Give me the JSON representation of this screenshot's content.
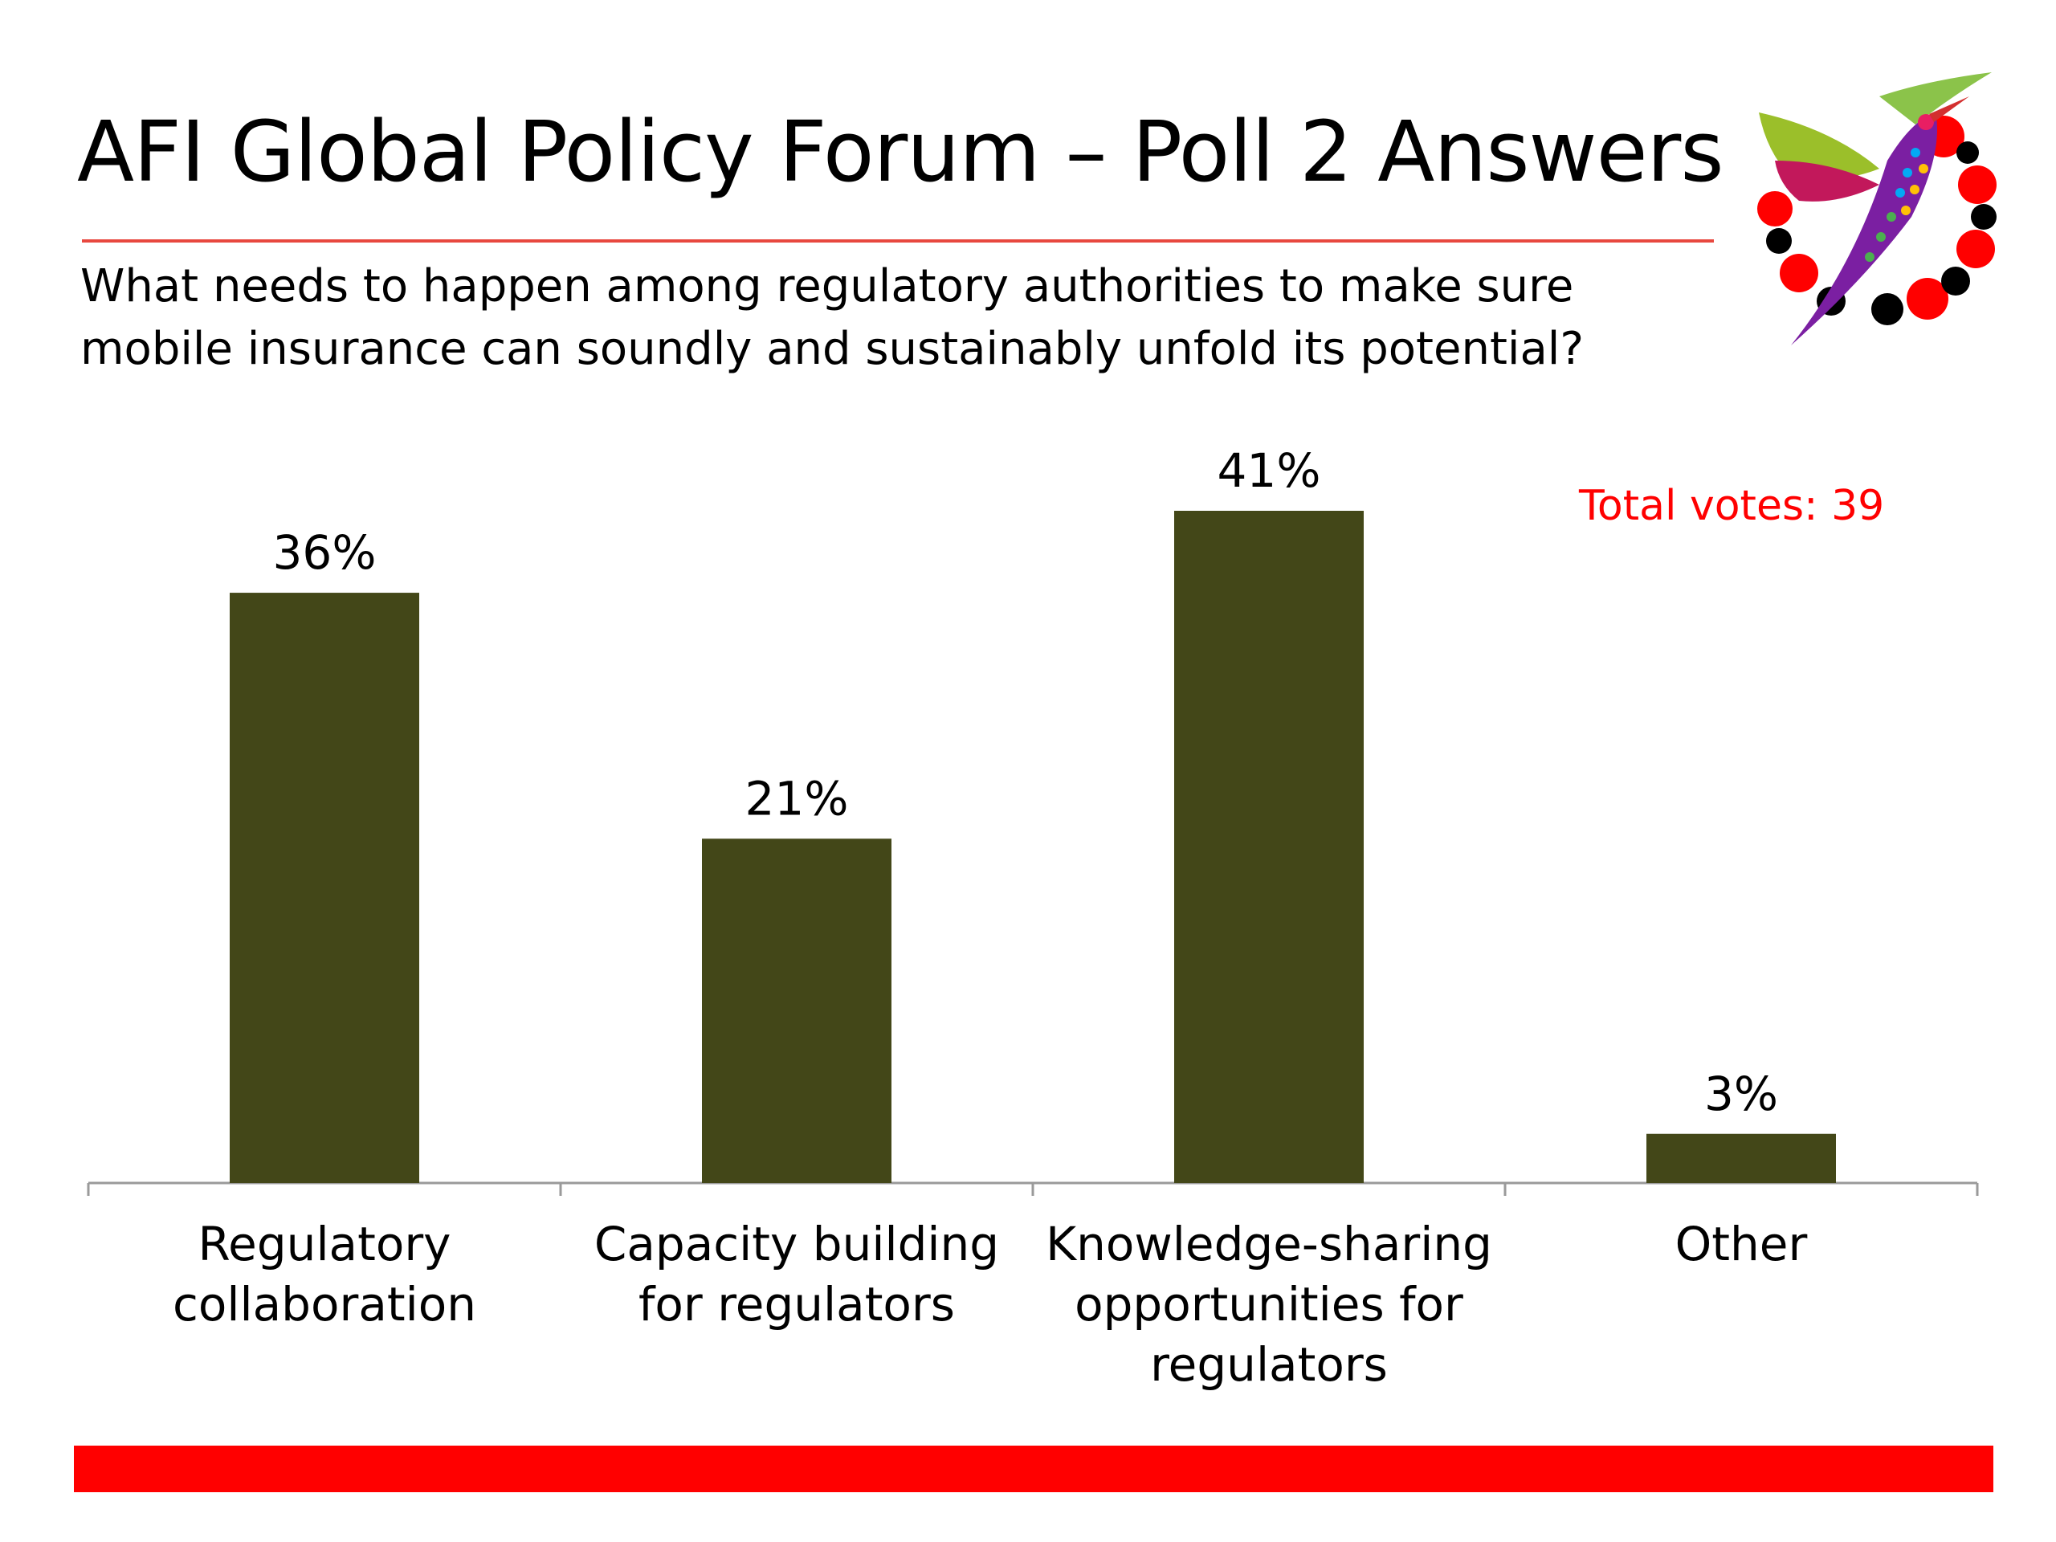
{
  "slide": {
    "title": "AFI Global Policy Forum – Poll 2 Answers",
    "question_line1": "What needs to happen among regulatory authorities to make sure",
    "question_line2": "mobile insurance can soundly and sustainably unfold its potential?",
    "total_votes": "Total votes: 39",
    "logo_icon": "hummingbird-logo-icon"
  },
  "colors": {
    "bar": "#434718",
    "accent_red": "#ff0000",
    "rule": "#e8483f",
    "axis": "#9a9a9a"
  },
  "chart_data": {
    "type": "bar",
    "categories": [
      [
        "Regulatory",
        "collaboration"
      ],
      [
        "Capacity building",
        "for regulators"
      ],
      [
        "Knowledge-sharing",
        "opportunities for",
        "regulators"
      ],
      [
        "Other"
      ]
    ],
    "values": [
      36,
      21,
      41,
      3
    ],
    "value_labels": [
      "36%",
      "21%",
      "41%",
      "3%"
    ],
    "unit": "%",
    "ylim": [
      0,
      41
    ],
    "grid": false,
    "legend": "none"
  }
}
